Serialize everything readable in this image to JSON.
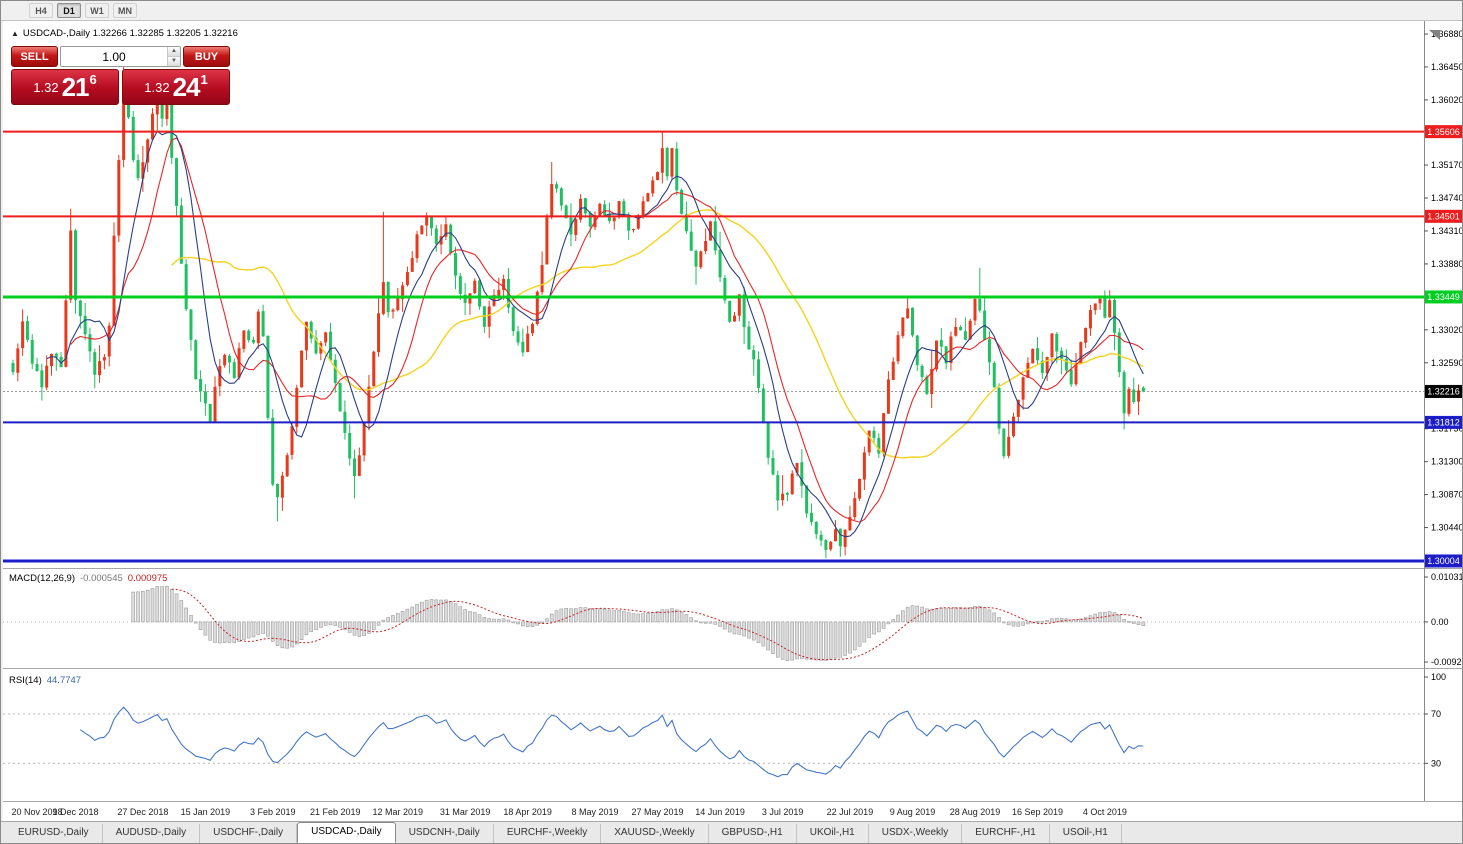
{
  "window": {
    "toolbar": {
      "timeframes": [
        {
          "label": "H4",
          "active": false
        },
        {
          "label": "D1",
          "active": true
        },
        {
          "label": "W1",
          "active": false
        },
        {
          "label": "MN",
          "active": false
        }
      ]
    },
    "tabs": [
      {
        "label": "EURUSD-,Daily",
        "active": false
      },
      {
        "label": "AUDUSD-,Daily",
        "active": false
      },
      {
        "label": "USDCHF-,Daily",
        "active": false
      },
      {
        "label": "USDCAD-,Daily",
        "active": true
      },
      {
        "label": "USDCNH-,Daily",
        "active": false
      },
      {
        "label": "EURCHF-,Weekly",
        "active": false
      },
      {
        "label": "XAUUSD-,Weekly",
        "active": false
      },
      {
        "label": "GBPUSD-,H1",
        "active": false
      },
      {
        "label": "UKOil-,H1",
        "active": false
      },
      {
        "label": "USDX-,Weekly",
        "active": false
      },
      {
        "label": "EURCHF-,H1",
        "active": false
      },
      {
        "label": "USOil-,H1",
        "active": false
      }
    ]
  },
  "chart_header": {
    "toggle_icon": "▲",
    "symbol_ohlc": "USDCAD-,Daily  1.32266 1.32285 1.32205 1.32216"
  },
  "one_click": {
    "sell_label": "SELL",
    "buy_label": "BUY",
    "volume": "1.00",
    "spin_up": "▲",
    "spin_down": "▼",
    "sell_price": {
      "prefix": "1.32",
      "big": "21",
      "sup": "6"
    },
    "buy_price": {
      "prefix": "1.32",
      "big": "24",
      "sup": "1"
    }
  },
  "chart_data": {
    "type": "candlestick",
    "symbol": "USDCAD-",
    "timeframe": "Daily",
    "ohlc": {
      "open": "1.32266",
      "high": "1.32285",
      "low": "1.32205",
      "close": "1.32216"
    },
    "candle_count": 236,
    "y_ticks": [
      "1.36880",
      "1.36450",
      "1.36020",
      "1.35170",
      "1.34740",
      "1.34310",
      "1.33880",
      "1.33020",
      "1.32590",
      "1.31730",
      "1.31300",
      "1.30870",
      "1.30440"
    ],
    "levels": [
      {
        "price": 1.35606,
        "label": "1.35606",
        "color": "#ee1c1c",
        "width": 2
      },
      {
        "price": 1.34501,
        "label": "1.34501",
        "color": "#ee1c1c",
        "width": 2
      },
      {
        "price": 1.33449,
        "label": "1.33449",
        "color": "#00cf21",
        "width": 3
      },
      {
        "price": 1.31812,
        "label": "1.31812",
        "color": "#1d1dc8",
        "width": 2
      },
      {
        "price": 1.30004,
        "label": "1.30004",
        "color": "#1d1dc8",
        "width": 3
      }
    ],
    "current_price": {
      "value": 1.32216,
      "label": "1.32216"
    },
    "x_labels": [
      {
        "label": "20 Nov 2018",
        "i": 0
      },
      {
        "label": "9 Dec 2018",
        "i": 13
      },
      {
        "label": "27 Dec 2018",
        "i": 27
      },
      {
        "label": "15 Jan 2019",
        "i": 40
      },
      {
        "label": "3 Feb 2019",
        "i": 54
      },
      {
        "label": "21 Feb 2019",
        "i": 67
      },
      {
        "label": "12 Mar 2019",
        "i": 80
      },
      {
        "label": "31 Mar 2019",
        "i": 94
      },
      {
        "label": "18 Apr 2019",
        "i": 107
      },
      {
        "label": "8 May 2019",
        "i": 121
      },
      {
        "label": "27 May 2019",
        "i": 134
      },
      {
        "label": "14 Jun 2019",
        "i": 147
      },
      {
        "label": "3 Jul 2019",
        "i": 160
      },
      {
        "label": "22 Jul 2019",
        "i": 174
      },
      {
        "label": "9 Aug 2019",
        "i": 187
      },
      {
        "label": "28 Aug 2019",
        "i": 200
      },
      {
        "label": "16 Sep 2019",
        "i": 213
      },
      {
        "label": "4 Oct 2019",
        "i": 227
      }
    ],
    "price_anchors": [
      [
        0,
        1.3245
      ],
      [
        2,
        1.331
      ],
      [
        4,
        1.326
      ],
      [
        6,
        1.3232
      ],
      [
        8,
        1.3268
      ],
      [
        10,
        1.3252
      ],
      [
        12,
        1.3438
      ],
      [
        13,
        1.3345
      ],
      [
        15,
        1.3298
      ],
      [
        17,
        1.3238
      ],
      [
        19,
        1.3272
      ],
      [
        20,
        1.331
      ],
      [
        21,
        1.342
      ],
      [
        22,
        1.353
      ],
      [
        23,
        1.3615
      ],
      [
        24,
        1.3585
      ],
      [
        25,
        1.353
      ],
      [
        26,
        1.3495
      ],
      [
        28,
        1.355
      ],
      [
        30,
        1.3618
      ],
      [
        31,
        1.3575
      ],
      [
        32,
        1.3605
      ],
      [
        33,
        1.353
      ],
      [
        34,
        1.347
      ],
      [
        35,
        1.339
      ],
      [
        36,
        1.3332
      ],
      [
        37,
        1.329
      ],
      [
        38,
        1.3242
      ],
      [
        40,
        1.3202
      ],
      [
        41,
        1.3188
      ],
      [
        42,
        1.3232
      ],
      [
        44,
        1.3272
      ],
      [
        46,
        1.3242
      ],
      [
        48,
        1.3302
      ],
      [
        50,
        1.3282
      ],
      [
        51,
        1.3322
      ],
      [
        52,
        1.3298
      ],
      [
        53,
        1.3192
      ],
      [
        54,
        1.3102
      ],
      [
        55,
        1.3078
      ],
      [
        56,
        1.3112
      ],
      [
        58,
        1.3172
      ],
      [
        60,
        1.3272
      ],
      [
        61,
        1.3308
      ],
      [
        63,
        1.3272
      ],
      [
        65,
        1.3302
      ],
      [
        67,
        1.3232
      ],
      [
        69,
        1.3172
      ],
      [
        70,
        1.3128
      ],
      [
        71,
        1.3108
      ],
      [
        72,
        1.3142
      ],
      [
        74,
        1.3232
      ],
      [
        76,
        1.3322
      ],
      [
        77,
        1.3362
      ],
      [
        78,
        1.3322
      ],
      [
        80,
        1.3342
      ],
      [
        82,
        1.3372
      ],
      [
        84,
        1.3428
      ],
      [
        86,
        1.3446
      ],
      [
        88,
        1.3412
      ],
      [
        90,
        1.3436
      ],
      [
        92,
        1.3372
      ],
      [
        94,
        1.3332
      ],
      [
        96,
        1.3362
      ],
      [
        98,
        1.3312
      ],
      [
        100,
        1.3346
      ],
      [
        102,
        1.3362
      ],
      [
        104,
        1.3302
      ],
      [
        106,
        1.3272
      ],
      [
        108,
        1.3312
      ],
      [
        110,
        1.3392
      ],
      [
        112,
        1.3498
      ],
      [
        114,
        1.3462
      ],
      [
        116,
        1.3432
      ],
      [
        118,
        1.3472
      ],
      [
        120,
        1.3442
      ],
      [
        122,
        1.3472
      ],
      [
        124,
        1.3442
      ],
      [
        126,
        1.3466
      ],
      [
        128,
        1.3426
      ],
      [
        130,
        1.3452
      ],
      [
        132,
        1.3482
      ],
      [
        134,
        1.3512
      ],
      [
        135,
        1.3542
      ],
      [
        136,
        1.3502
      ],
      [
        137,
        1.3538
      ],
      [
        138,
        1.3482
      ],
      [
        140,
        1.3432
      ],
      [
        142,
        1.3382
      ],
      [
        144,
        1.3422
      ],
      [
        145,
        1.3448
      ],
      [
        147,
        1.3372
      ],
      [
        149,
        1.3312
      ],
      [
        151,
        1.3342
      ],
      [
        153,
        1.3282
      ],
      [
        155,
        1.3232
      ],
      [
        157,
        1.3132
      ],
      [
        159,
        1.3082
      ],
      [
        161,
        1.3092
      ],
      [
        163,
        1.3132
      ],
      [
        165,
        1.3062
      ],
      [
        167,
        1.3038
      ],
      [
        169,
        1.3012
      ],
      [
        171,
        1.3042
      ],
      [
        172,
        1.3018
      ],
      [
        174,
        1.3058
      ],
      [
        176,
        1.3112
      ],
      [
        178,
        1.3172
      ],
      [
        180,
        1.3142
      ],
      [
        182,
        1.3232
      ],
      [
        184,
        1.3292
      ],
      [
        186,
        1.3332
      ],
      [
        188,
        1.3252
      ],
      [
        190,
        1.3222
      ],
      [
        192,
        1.3292
      ],
      [
        194,
        1.3262
      ],
      [
        196,
        1.3312
      ],
      [
        198,
        1.3292
      ],
      [
        200,
        1.3348
      ],
      [
        201,
        1.3332
      ],
      [
        202,
        1.3292
      ],
      [
        204,
        1.3232
      ],
      [
        205,
        1.3172
      ],
      [
        206,
        1.3142
      ],
      [
        208,
        1.3192
      ],
      [
        210,
        1.3242
      ],
      [
        212,
        1.3282
      ],
      [
        214,
        1.3252
      ],
      [
        216,
        1.3292
      ],
      [
        218,
        1.3262
      ],
      [
        220,
        1.3232
      ],
      [
        222,
        1.3282
      ],
      [
        224,
        1.3332
      ],
      [
        226,
        1.3342
      ],
      [
        227,
        1.3322
      ],
      [
        228,
        1.3338
      ],
      [
        229,
        1.3292
      ],
      [
        230,
        1.3242
      ],
      [
        231,
        1.3192
      ],
      [
        232,
        1.3222
      ],
      [
        233,
        1.3202
      ],
      [
        234,
        1.3228
      ],
      [
        235,
        1.32216
      ]
    ],
    "wick_overrides": {
      "12": {
        "h": 1.346
      },
      "23": {
        "h": 1.3645
      },
      "30": {
        "h": 1.364
      },
      "41": {
        "l": 1.318
      },
      "55": {
        "l": 1.3052
      },
      "71": {
        "l": 1.3082
      },
      "77": {
        "h": 1.3456
      },
      "112": {
        "h": 1.3521
      },
      "135": {
        "h": 1.3561
      },
      "169": {
        "l": 1.3004
      },
      "172": {
        "l": 1.3006
      },
      "201": {
        "h": 1.3383
      },
      "206": {
        "l": 1.3134
      },
      "226": {
        "h": 1.3347
      },
      "231": {
        "l": 1.3172
      }
    },
    "last_candle": {
      "o": 1.32266,
      "h": 1.32285,
      "l": 1.32205,
      "c": 1.32216
    },
    "colors": {
      "up": "#e8391d",
      "down": "#1fbf62",
      "ma_fast": "#2b3f87",
      "ma_mid": "#e82727",
      "ma_slow": "#f5d31d"
    },
    "ma_periods": {
      "fast": 8,
      "mid": 13,
      "slow": 34
    },
    "macd": {
      "label": "MACD(12,26,9)",
      "value_main": "-0.000545",
      "value_signal": "0.000975",
      "axis": [
        "0.010311",
        "0.00",
        "-0.009203"
      ],
      "range": [
        -0.009203,
        0.010311
      ]
    },
    "rsi": {
      "label": "RSI(14)",
      "value": "44.7747",
      "axis": [
        "100",
        "70",
        "30"
      ],
      "levels": [
        70,
        30
      ],
      "range": [
        0,
        100
      ]
    }
  }
}
